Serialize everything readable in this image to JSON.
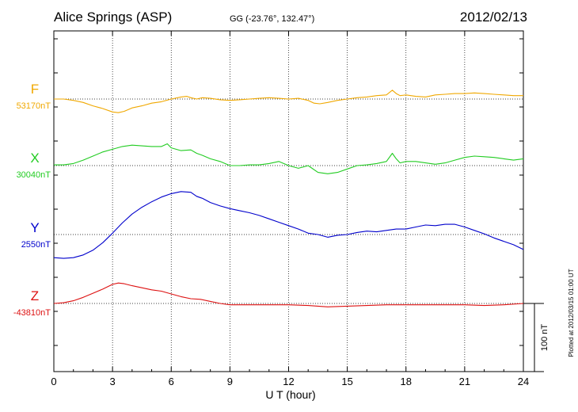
{
  "header": {
    "station": "Alice Springs (ASP)",
    "coords": "GG (-23.76°, 132.47°)",
    "date": "2012/02/13"
  },
  "footer_note": "Plotted at 2012/03/15 01:00 UT",
  "scale_label": "100 nT",
  "chart_data": {
    "type": "line",
    "title": "Alice Springs (ASP)",
    "xlabel": "U T (hour)",
    "ylabel": "",
    "xlim": [
      0,
      24
    ],
    "x_ticks": [
      "0",
      "3",
      "6",
      "9",
      "12",
      "15",
      "18",
      "21",
      "24"
    ],
    "grid": true,
    "scale_bar_nT": 100,
    "series": [
      {
        "name": "F",
        "baseline": "53170nT",
        "color": "#f0a800",
        "x": [
          0,
          0.5,
          1,
          1.5,
          2,
          2.5,
          3,
          3.3,
          3.6,
          4,
          4.5,
          5,
          5.5,
          6,
          6.5,
          6.8,
          7,
          7.3,
          7.6,
          8,
          8.5,
          9,
          9.5,
          10,
          10.5,
          11,
          11.5,
          12,
          12.5,
          13,
          13.3,
          13.6,
          14,
          14.5,
          15,
          15.5,
          16,
          16.5,
          17,
          17.3,
          17.5,
          17.7,
          18,
          18.5,
          19,
          19.5,
          20,
          20.5,
          21,
          21.5,
          22,
          22.5,
          23,
          23.5,
          24
        ],
        "y": [
          53170,
          53170,
          53168,
          53165,
          53160,
          53156,
          53151,
          53150,
          53152,
          53157,
          53160,
          53164,
          53166,
          53170,
          53173,
          53174,
          53172,
          53170,
          53172,
          53171,
          53169,
          53168,
          53169,
          53170,
          53171,
          53172,
          53171,
          53170,
          53171,
          53168,
          53164,
          53163,
          53165,
          53168,
          53170,
          53172,
          53173,
          53175,
          53176,
          53183,
          53178,
          53175,
          53176,
          53174,
          53173,
          53176,
          53177,
          53178,
          53178,
          53179,
          53178,
          53177,
          53176,
          53175,
          53175
        ]
      },
      {
        "name": "X",
        "baseline": "30040nT",
        "color": "#22cc22",
        "x": [
          0,
          0.5,
          1,
          1.5,
          2,
          2.5,
          3,
          3.5,
          4,
          4.5,
          5,
          5.5,
          5.8,
          6,
          6.5,
          7,
          7.3,
          7.6,
          8,
          8.5,
          9,
          9.5,
          10,
          10.5,
          11,
          11.5,
          12,
          12.5,
          13,
          13.5,
          14,
          14.5,
          15,
          15.5,
          16,
          16.5,
          17,
          17.3,
          17.5,
          17.7,
          18,
          18.5,
          19,
          19.5,
          20,
          20.5,
          21,
          21.5,
          22,
          22.5,
          23,
          23.5,
          24
        ],
        "y": [
          30041,
          30041,
          30043,
          30048,
          30054,
          30060,
          30064,
          30068,
          30070,
          30069,
          30068,
          30068,
          30072,
          30066,
          30062,
          30063,
          30058,
          30055,
          30050,
          30046,
          30040,
          30040,
          30041,
          30041,
          30043,
          30046,
          30040,
          30036,
          30040,
          30030,
          30028,
          30030,
          30035,
          30040,
          30041,
          30043,
          30046,
          30058,
          30050,
          30044,
          30046,
          30046,
          30044,
          30042,
          30044,
          30048,
          30052,
          30054,
          30053,
          30052,
          30050,
          30048,
          30050
        ]
      },
      {
        "name": "Y",
        "baseline": "2550nT",
        "color": "#0000cc",
        "x": [
          0,
          0.5,
          1,
          1.5,
          2,
          2.5,
          3,
          3.5,
          4,
          4.5,
          5,
          5.5,
          6,
          6.5,
          7,
          7.3,
          7.6,
          8,
          8.5,
          9,
          9.5,
          10,
          10.5,
          11,
          11.5,
          12,
          12.5,
          13,
          13.5,
          14,
          14.5,
          15,
          15.5,
          16,
          16.5,
          17,
          17.5,
          18,
          18.5,
          19,
          19.5,
          20,
          20.5,
          21,
          21.5,
          22,
          22.5,
          23,
          23.5,
          24
        ],
        "y": [
          2516,
          2515,
          2516,
          2520,
          2527,
          2538,
          2552,
          2567,
          2580,
          2590,
          2598,
          2605,
          2610,
          2613,
          2612,
          2606,
          2603,
          2597,
          2592,
          2588,
          2585,
          2582,
          2578,
          2573,
          2568,
          2563,
          2558,
          2552,
          2550,
          2546,
          2549,
          2550,
          2553,
          2555,
          2554,
          2556,
          2558,
          2558,
          2561,
          2564,
          2563,
          2565,
          2565,
          2561,
          2556,
          2551,
          2545,
          2540,
          2535,
          2528
        ]
      },
      {
        "name": "Z",
        "baseline": "-43810nT",
        "color": "#dd1111",
        "x": [
          0,
          0.5,
          1,
          1.5,
          2,
          2.5,
          3,
          3.3,
          3.6,
          4,
          4.5,
          5,
          5.5,
          6,
          6.5,
          7,
          7.5,
          8,
          8.5,
          9,
          9.5,
          10,
          10.5,
          11,
          11.5,
          12,
          13,
          14,
          15,
          16,
          17,
          18,
          19,
          20,
          21,
          22,
          23,
          24
        ],
        "y": [
          -43810,
          -43809,
          -43806,
          -43801,
          -43795,
          -43789,
          -43782,
          -43780,
          -43781,
          -43784,
          -43787,
          -43790,
          -43792,
          -43796,
          -43800,
          -43803,
          -43804,
          -43807,
          -43810,
          -43812,
          -43812,
          -43812,
          -43812,
          -43812,
          -43812,
          -43812,
          -43813,
          -43815,
          -43814,
          -43813,
          -43812,
          -43812,
          -43812,
          -43812,
          -43812,
          -43813,
          -43812,
          -43810
        ]
      }
    ]
  }
}
